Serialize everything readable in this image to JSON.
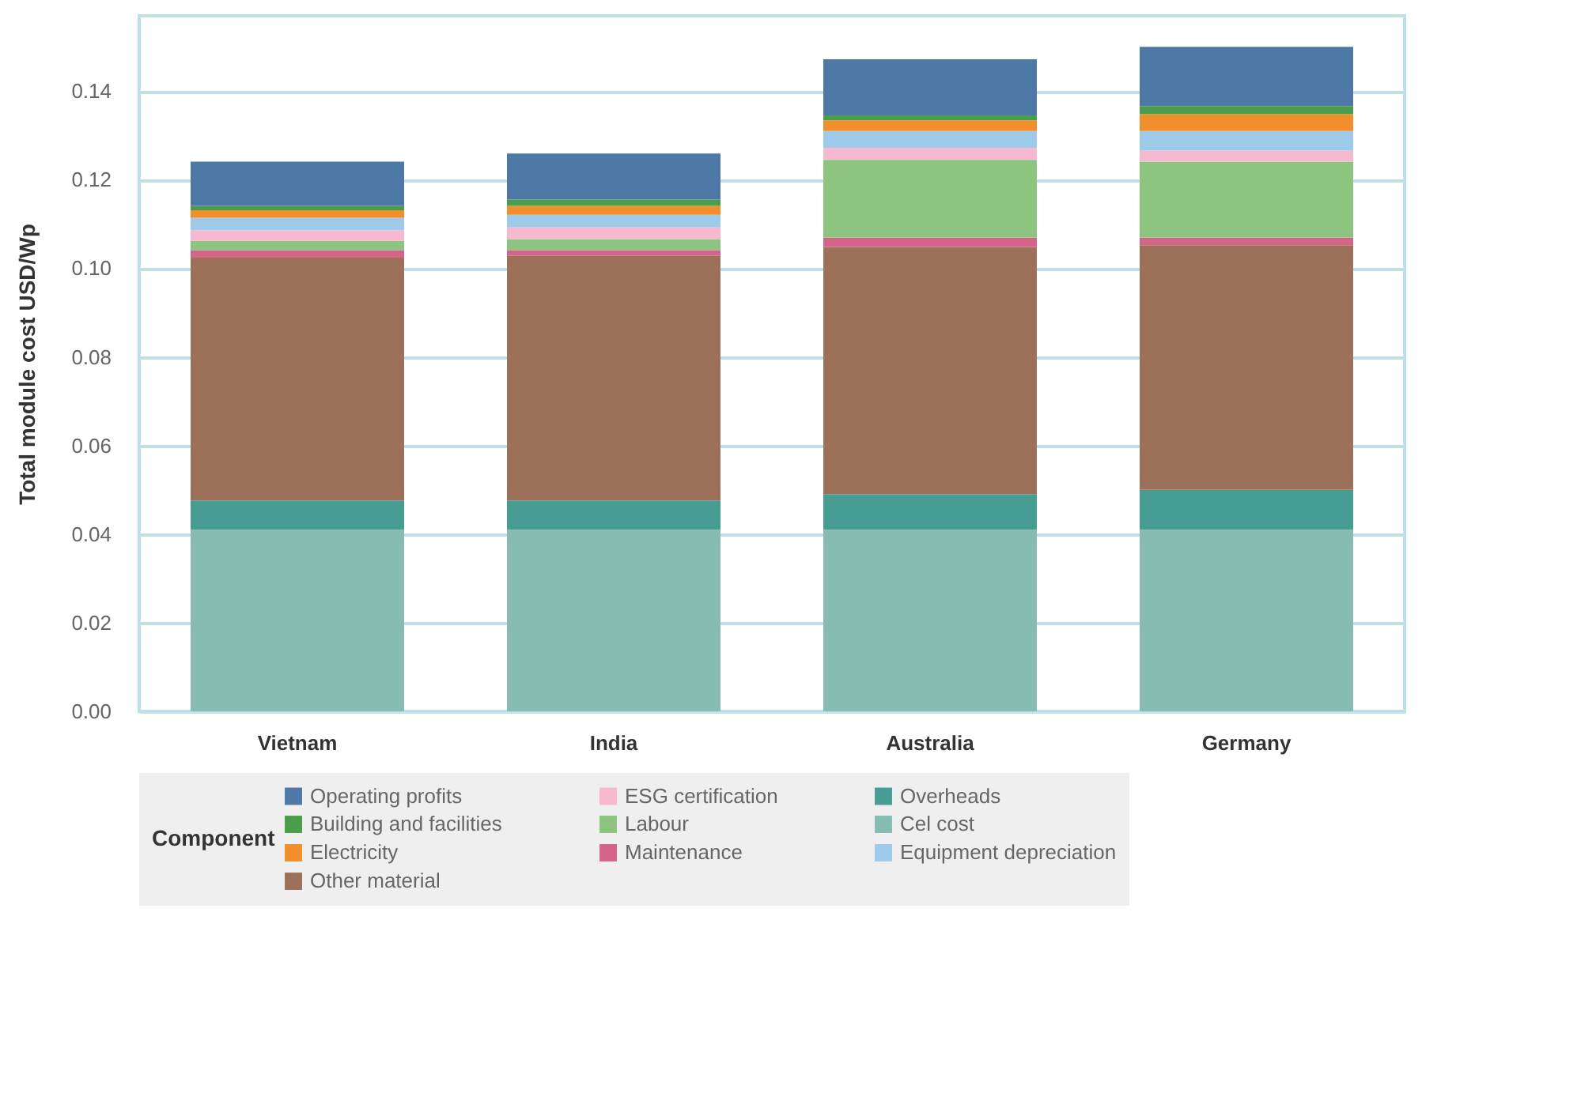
{
  "chart_data": {
    "type": "bar",
    "stacked": true,
    "ylabel": "Total module cost USD/Wp",
    "legend_title": "Component",
    "legend": "bottom",
    "grid": "y",
    "categories": [
      "Vietnam",
      "India",
      "Australia",
      "Germany"
    ],
    "ylim": [
      0,
      0.157
    ],
    "yticks": [
      {
        "value": 0,
        "label": "0.00"
      },
      {
        "value": 0.02,
        "label": "0.02"
      },
      {
        "value": 0.04,
        "label": "0.04"
      },
      {
        "value": 0.06,
        "label": "0.06"
      },
      {
        "value": 0.08,
        "label": "0.08"
      },
      {
        "value": 0.1,
        "label": "0.10"
      },
      {
        "value": 0.12,
        "label": "0.12"
      },
      {
        "value": 0.14,
        "label": "0.14"
      }
    ],
    "series": [
      {
        "name": "Cel cost",
        "color": "#86bcb2",
        "values": [
          0.041,
          0.041,
          0.041,
          0.041
        ]
      },
      {
        "name": "Overheads",
        "color": "#479c93",
        "values": [
          0.0066,
          0.0066,
          0.008,
          0.009
        ]
      },
      {
        "name": "Other material",
        "color": "#9c7059",
        "values": [
          0.0548,
          0.0552,
          0.0558,
          0.0552
        ]
      },
      {
        "name": "Maintenance",
        "color": "#d4648a",
        "values": [
          0.0017,
          0.0013,
          0.0021,
          0.0017
        ]
      },
      {
        "name": "Labour",
        "color": "#8dc47f",
        "values": [
          0.0021,
          0.0025,
          0.0176,
          0.0172
        ]
      },
      {
        "name": "ESG certification",
        "color": "#f7b9d0",
        "values": [
          0.0024,
          0.0027,
          0.0027,
          0.0025
        ]
      },
      {
        "name": "Equipment depreciation",
        "color": "#9dcbe9",
        "values": [
          0.0028,
          0.0028,
          0.0038,
          0.0044
        ]
      },
      {
        "name": "Electricity",
        "color": "#f28e2b",
        "values": [
          0.0017,
          0.002,
          0.0024,
          0.0038
        ]
      },
      {
        "name": "Building and facilities",
        "color": "#4a9e4a",
        "values": [
          0.001,
          0.0014,
          0.0011,
          0.0018
        ]
      },
      {
        "name": "Operating profits",
        "color": "#4e79a7",
        "values": [
          0.01,
          0.0104,
          0.0127,
          0.0134
        ]
      }
    ]
  }
}
